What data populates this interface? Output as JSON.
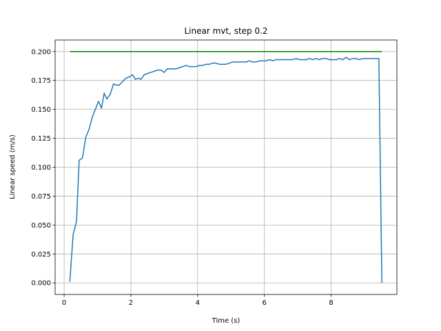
{
  "chart_data": {
    "type": "line",
    "title": "Linear mvt, step 0.2",
    "xlabel": "Time (s)",
    "ylabel": "Linear speed (m/s)",
    "xlim": [
      -0.27,
      9.97
    ],
    "ylim": [
      -0.01,
      0.21
    ],
    "xticks": [
      0,
      2,
      4,
      6,
      8
    ],
    "xtick_labels": [
      "0",
      "2",
      "4",
      "6",
      "8"
    ],
    "yticks": [
      0.0,
      0.025,
      0.05,
      0.075,
      0.1,
      0.125,
      0.15,
      0.175,
      0.2
    ],
    "ytick_labels": [
      "0.000",
      "0.025",
      "0.050",
      "0.075",
      "0.100",
      "0.125",
      "0.150",
      "0.175",
      "0.200"
    ],
    "grid": true,
    "colors": {
      "measured": "#1f77b4",
      "target": "#008000"
    },
    "series": [
      {
        "key": "measured",
        "x": [
          0.17,
          0.27,
          0.37,
          0.45,
          0.55,
          0.65,
          0.75,
          0.85,
          0.95,
          1.03,
          1.12,
          1.2,
          1.28,
          1.38,
          1.48,
          1.57,
          1.65,
          1.75,
          1.85,
          1.95,
          2.05,
          2.13,
          2.22,
          2.3,
          2.4,
          2.5,
          2.6,
          2.7,
          2.8,
          2.9,
          3.0,
          3.08,
          3.17,
          3.26,
          3.35,
          3.45,
          3.55,
          3.65,
          3.75,
          3.85,
          3.95,
          4.05,
          4.15,
          4.25,
          4.35,
          4.45,
          4.55,
          4.65,
          4.75,
          4.85,
          4.95,
          5.05,
          5.15,
          5.25,
          5.35,
          5.45,
          5.55,
          5.65,
          5.75,
          5.85,
          5.95,
          6.05,
          6.15,
          6.25,
          6.35,
          6.45,
          6.55,
          6.65,
          6.75,
          6.85,
          6.95,
          7.05,
          7.15,
          7.25,
          7.35,
          7.45,
          7.55,
          7.65,
          7.75,
          7.85,
          7.95,
          8.05,
          8.15,
          8.25,
          8.35,
          8.45,
          8.55,
          8.65,
          8.75,
          8.85,
          8.95,
          9.05,
          9.15,
          9.25,
          9.35,
          9.43,
          9.52
        ],
        "y": [
          0.001,
          0.042,
          0.053,
          0.106,
          0.108,
          0.126,
          0.133,
          0.144,
          0.151,
          0.157,
          0.151,
          0.164,
          0.159,
          0.163,
          0.172,
          0.171,
          0.171,
          0.174,
          0.177,
          0.178,
          0.18,
          0.176,
          0.177,
          0.176,
          0.18,
          0.181,
          0.182,
          0.183,
          0.184,
          0.184,
          0.182,
          0.185,
          0.185,
          0.185,
          0.185,
          0.186,
          0.187,
          0.188,
          0.187,
          0.187,
          0.187,
          0.188,
          0.188,
          0.189,
          0.189,
          0.19,
          0.19,
          0.189,
          0.189,
          0.189,
          0.19,
          0.191,
          0.191,
          0.191,
          0.191,
          0.191,
          0.192,
          0.191,
          0.191,
          0.192,
          0.192,
          0.192,
          0.193,
          0.192,
          0.193,
          0.193,
          0.193,
          0.193,
          0.193,
          0.193,
          0.194,
          0.193,
          0.193,
          0.193,
          0.194,
          0.193,
          0.194,
          0.193,
          0.194,
          0.194,
          0.193,
          0.193,
          0.193,
          0.194,
          0.193,
          0.195,
          0.193,
          0.194,
          0.194,
          0.193,
          0.194,
          0.194,
          0.194,
          0.194,
          0.194,
          0.194,
          0.0
        ]
      },
      {
        "key": "target",
        "x": [
          0.17,
          9.52
        ],
        "y": [
          0.2,
          0.2
        ]
      }
    ]
  }
}
